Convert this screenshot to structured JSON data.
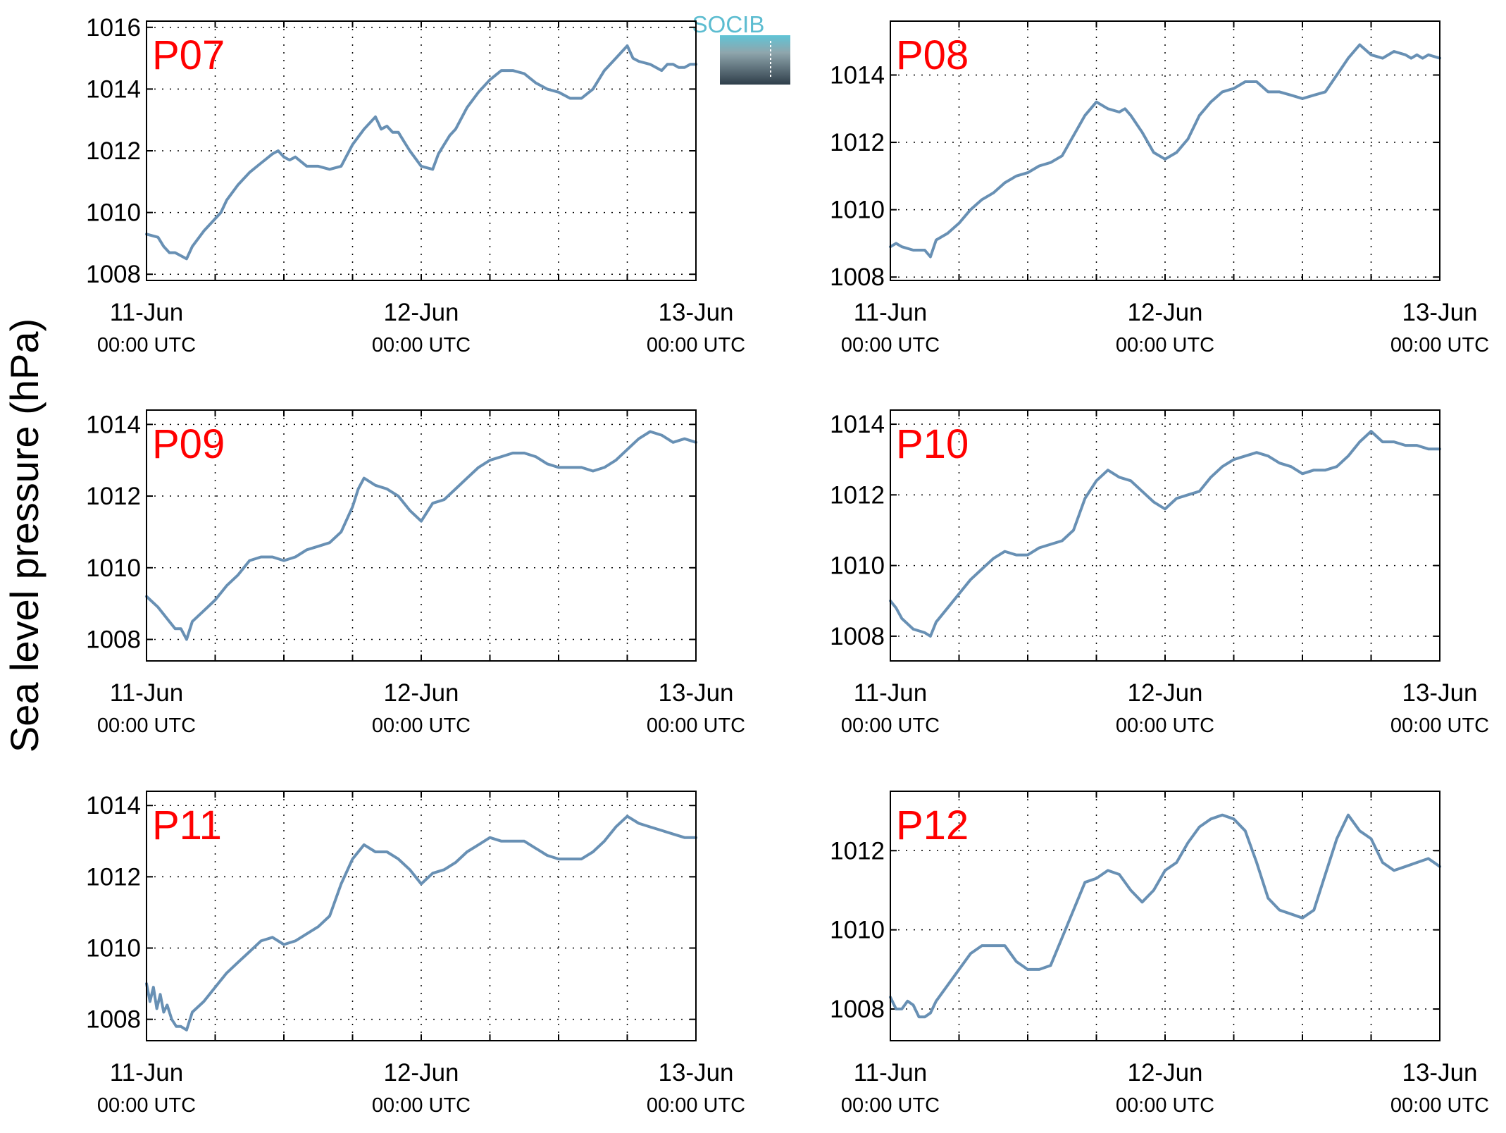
{
  "figure": {
    "ylabel": "Sea level pressure (hPa)",
    "logo_text": "SOCIB",
    "colors": {
      "line": "#6890b4",
      "label": "#ff0000",
      "logo": "#5bbcd0"
    }
  },
  "chart_data": [
    {
      "type": "line",
      "label": "P07",
      "ylim": [
        1007.8,
        1016.2
      ],
      "yticks": [
        1008,
        1010,
        1012,
        1014,
        1016
      ],
      "x_ticks": [
        {
          "date": "11-Jun",
          "time": "00:00 UTC"
        },
        {
          "date": "12-Jun",
          "time": "00:00 UTC"
        },
        {
          "date": "13-Jun",
          "time": "00:00 UTC"
        }
      ],
      "xlim_hours": [
        0,
        48
      ],
      "grid": true,
      "series": [
        {
          "x": [
            0,
            1,
            1.5,
            2,
            2.5,
            3,
            3.5,
            4,
            5,
            6,
            6.5,
            7,
            8,
            9,
            10,
            11,
            11.5,
            12,
            12.5,
            13,
            14,
            15,
            16,
            17,
            18,
            19,
            20,
            20.5,
            21,
            21.5,
            22,
            22.5,
            23,
            24,
            25,
            25.5,
            26,
            26.5,
            27,
            28,
            29,
            30,
            31,
            32,
            33,
            34,
            35,
            36,
            37,
            38,
            39,
            40,
            41,
            42,
            42.5,
            43,
            44,
            45,
            45.5,
            46,
            46.5,
            47,
            47.5,
            48
          ],
          "y": [
            1009.3,
            1009.2,
            1008.9,
            1008.7,
            1008.7,
            1008.6,
            1008.5,
            1008.9,
            1009.4,
            1009.8,
            1010.0,
            1010.4,
            1010.9,
            1011.3,
            1011.6,
            1011.9,
            1012.0,
            1011.8,
            1011.7,
            1011.8,
            1011.5,
            1011.5,
            1011.4,
            1011.5,
            1012.2,
            1012.7,
            1013.1,
            1012.7,
            1012.8,
            1012.6,
            1012.6,
            1012.3,
            1012.0,
            1011.5,
            1011.4,
            1011.9,
            1012.2,
            1012.5,
            1012.7,
            1013.4,
            1013.9,
            1014.3,
            1014.6,
            1014.6,
            1014.5,
            1014.2,
            1014.0,
            1013.9,
            1013.7,
            1013.7,
            1014.0,
            1014.6,
            1015.0,
            1015.4,
            1015.0,
            1014.9,
            1014.8,
            1014.6,
            1014.8,
            1014.8,
            1014.7,
            1014.7,
            1014.8,
            1014.8
          ]
        }
      ]
    },
    {
      "type": "line",
      "label": "P08",
      "ylim": [
        1007.9,
        1015.6
      ],
      "yticks": [
        1008,
        1010,
        1012,
        1014
      ],
      "x_ticks": [
        {
          "date": "11-Jun",
          "time": "00:00 UTC"
        },
        {
          "date": "12-Jun",
          "time": "00:00 UTC"
        },
        {
          "date": "13-Jun",
          "time": "00:00 UTC"
        }
      ],
      "xlim_hours": [
        0,
        48
      ],
      "grid": true,
      "series": [
        {
          "x": [
            0,
            0.5,
            1,
            2,
            3,
            3.5,
            4,
            5,
            6,
            7,
            8,
            9,
            10,
            11,
            12,
            13,
            14,
            15,
            16,
            17,
            18,
            19,
            20,
            20.5,
            21,
            22,
            23,
            24,
            25,
            25.5,
            26,
            27,
            28,
            29,
            30,
            31,
            32,
            33,
            34,
            35,
            36,
            37,
            38,
            39,
            40,
            41,
            42,
            43,
            44,
            45,
            45.5,
            46,
            46.5,
            47,
            48
          ],
          "y": [
            1008.9,
            1009.0,
            1008.9,
            1008.8,
            1008.8,
            1008.6,
            1009.1,
            1009.3,
            1009.6,
            1010.0,
            1010.3,
            1010.5,
            1010.8,
            1011.0,
            1011.1,
            1011.3,
            1011.4,
            1011.6,
            1012.2,
            1012.8,
            1013.2,
            1013.0,
            1012.9,
            1013.0,
            1012.8,
            1012.3,
            1011.7,
            1011.5,
            1011.7,
            1011.9,
            1012.1,
            1012.8,
            1013.2,
            1013.5,
            1013.6,
            1013.8,
            1013.8,
            1013.5,
            1013.5,
            1013.4,
            1013.3,
            1013.4,
            1013.5,
            1014.0,
            1014.5,
            1014.9,
            1014.6,
            1014.5,
            1014.7,
            1014.6,
            1014.5,
            1014.6,
            1014.5,
            1014.6,
            1014.5
          ]
        }
      ]
    },
    {
      "type": "line",
      "label": "P09",
      "ylim": [
        1007.4,
        1014.4
      ],
      "yticks": [
        1008,
        1010,
        1012,
        1014
      ],
      "x_ticks": [
        {
          "date": "11-Jun",
          "time": "00:00 UTC"
        },
        {
          "date": "12-Jun",
          "time": "00:00 UTC"
        },
        {
          "date": "13-Jun",
          "time": "00:00 UTC"
        }
      ],
      "xlim_hours": [
        0,
        48
      ],
      "grid": true,
      "series": [
        {
          "x": [
            0,
            1,
            2,
            2.5,
            3,
            3.5,
            4,
            5,
            6,
            7,
            8,
            9,
            10,
            11,
            12,
            13,
            14,
            15,
            16,
            17,
            18,
            18.5,
            19,
            20,
            21,
            22,
            23,
            24,
            25,
            26,
            27,
            28,
            29,
            30,
            31,
            32,
            33,
            34,
            35,
            36,
            37,
            38,
            39,
            40,
            41,
            42,
            43,
            44,
            45,
            46,
            47,
            48
          ],
          "y": [
            1009.2,
            1008.9,
            1008.5,
            1008.3,
            1008.3,
            1008.0,
            1008.5,
            1008.8,
            1009.1,
            1009.5,
            1009.8,
            1010.2,
            1010.3,
            1010.3,
            1010.2,
            1010.3,
            1010.5,
            1010.6,
            1010.7,
            1011.0,
            1011.7,
            1012.2,
            1012.5,
            1012.3,
            1012.2,
            1012.0,
            1011.6,
            1011.3,
            1011.8,
            1011.9,
            1012.2,
            1012.5,
            1012.8,
            1013.0,
            1013.1,
            1013.2,
            1013.2,
            1013.1,
            1012.9,
            1012.8,
            1012.8,
            1012.8,
            1012.7,
            1012.8,
            1013.0,
            1013.3,
            1013.6,
            1013.8,
            1013.7,
            1013.5,
            1013.6,
            1013.5
          ]
        }
      ]
    },
    {
      "type": "line",
      "label": "P10",
      "ylim": [
        1007.3,
        1014.4
      ],
      "yticks": [
        1008,
        1010,
        1012,
        1014
      ],
      "x_ticks": [
        {
          "date": "11-Jun",
          "time": "00:00 UTC"
        },
        {
          "date": "12-Jun",
          "time": "00:00 UTC"
        },
        {
          "date": "13-Jun",
          "time": "00:00 UTC"
        }
      ],
      "xlim_hours": [
        0,
        48
      ],
      "grid": true,
      "series": [
        {
          "x": [
            0,
            0.5,
            1,
            2,
            3,
            3.5,
            4,
            5,
            6,
            7,
            8,
            9,
            10,
            11,
            12,
            13,
            14,
            15,
            16,
            17,
            18,
            19,
            20,
            21,
            22,
            23,
            24,
            25,
            26,
            27,
            28,
            29,
            30,
            31,
            32,
            33,
            34,
            35,
            36,
            37,
            38,
            39,
            40,
            41,
            42,
            43,
            44,
            45,
            46,
            47,
            48
          ],
          "y": [
            1009.0,
            1008.8,
            1008.5,
            1008.2,
            1008.1,
            1008.0,
            1008.4,
            1008.8,
            1009.2,
            1009.6,
            1009.9,
            1010.2,
            1010.4,
            1010.3,
            1010.3,
            1010.5,
            1010.6,
            1010.7,
            1011.0,
            1011.9,
            1012.4,
            1012.7,
            1012.5,
            1012.4,
            1012.1,
            1011.8,
            1011.6,
            1011.9,
            1012.0,
            1012.1,
            1012.5,
            1012.8,
            1013.0,
            1013.1,
            1013.2,
            1013.1,
            1012.9,
            1012.8,
            1012.6,
            1012.7,
            1012.7,
            1012.8,
            1013.1,
            1013.5,
            1013.8,
            1013.5,
            1013.5,
            1013.4,
            1013.4,
            1013.3,
            1013.3
          ]
        }
      ]
    },
    {
      "type": "line",
      "label": "P11",
      "ylim": [
        1007.4,
        1014.4
      ],
      "yticks": [
        1008,
        1010,
        1012,
        1014
      ],
      "x_ticks": [
        {
          "date": "11-Jun",
          "time": "00:00 UTC"
        },
        {
          "date": "12-Jun",
          "time": "00:00 UTC"
        },
        {
          "date": "13-Jun",
          "time": "00:00 UTC"
        }
      ],
      "xlim_hours": [
        0,
        48
      ],
      "grid": true,
      "series": [
        {
          "x": [
            0,
            0.3,
            0.6,
            0.9,
            1.2,
            1.5,
            1.8,
            2.2,
            2.6,
            3,
            3.5,
            4,
            5,
            6,
            7,
            8,
            9,
            10,
            11,
            12,
            13,
            14,
            15,
            16,
            17,
            18,
            19,
            20,
            21,
            22,
            23,
            24,
            25,
            26,
            27,
            28,
            29,
            30,
            31,
            32,
            33,
            34,
            35,
            36,
            37,
            38,
            39,
            40,
            41,
            42,
            43,
            44,
            45,
            46,
            47,
            48
          ],
          "y": [
            1009.0,
            1008.5,
            1008.9,
            1008.3,
            1008.7,
            1008.2,
            1008.4,
            1008.0,
            1007.8,
            1007.8,
            1007.7,
            1008.2,
            1008.5,
            1008.9,
            1009.3,
            1009.6,
            1009.9,
            1010.2,
            1010.3,
            1010.1,
            1010.2,
            1010.4,
            1010.6,
            1010.9,
            1011.8,
            1012.5,
            1012.9,
            1012.7,
            1012.7,
            1012.5,
            1012.2,
            1011.8,
            1012.1,
            1012.2,
            1012.4,
            1012.7,
            1012.9,
            1013.1,
            1013.0,
            1013.0,
            1013.0,
            1012.8,
            1012.6,
            1012.5,
            1012.5,
            1012.5,
            1012.7,
            1013.0,
            1013.4,
            1013.7,
            1013.5,
            1013.4,
            1013.3,
            1013.2,
            1013.1,
            1013.1
          ]
        }
      ]
    },
    {
      "type": "line",
      "label": "P12",
      "ylim": [
        1007.2,
        1013.5
      ],
      "yticks": [
        1008,
        1010,
        1012
      ],
      "x_ticks": [
        {
          "date": "11-Jun",
          "time": "00:00 UTC"
        },
        {
          "date": "12-Jun",
          "time": "00:00 UTC"
        },
        {
          "date": "13-Jun",
          "time": "00:00 UTC"
        }
      ],
      "xlim_hours": [
        0,
        48
      ],
      "grid": true,
      "series": [
        {
          "x": [
            0,
            0.5,
            1,
            1.5,
            2,
            2.5,
            3,
            3.5,
            4,
            5,
            6,
            7,
            8,
            9,
            10,
            11,
            12,
            13,
            14,
            15,
            16,
            17,
            18,
            19,
            20,
            21,
            22,
            23,
            24,
            25,
            26,
            27,
            28,
            29,
            30,
            31,
            32,
            33,
            34,
            35,
            36,
            37,
            38,
            39,
            40,
            41,
            42,
            43,
            44,
            45,
            46,
            47,
            48
          ],
          "y": [
            1008.3,
            1008.0,
            1008.0,
            1008.2,
            1008.1,
            1007.8,
            1007.8,
            1007.9,
            1008.2,
            1008.6,
            1009.0,
            1009.4,
            1009.6,
            1009.6,
            1009.6,
            1009.2,
            1009.0,
            1009.0,
            1009.1,
            1009.8,
            1010.5,
            1011.2,
            1011.3,
            1011.5,
            1011.4,
            1011.0,
            1010.7,
            1011.0,
            1011.5,
            1011.7,
            1012.2,
            1012.6,
            1012.8,
            1012.9,
            1012.8,
            1012.5,
            1011.7,
            1010.8,
            1010.5,
            1010.4,
            1010.3,
            1010.5,
            1011.4,
            1012.3,
            1012.9,
            1012.5,
            1012.3,
            1011.7,
            1011.5,
            1011.6,
            1011.7,
            1011.8,
            1011.6
          ]
        }
      ]
    }
  ]
}
